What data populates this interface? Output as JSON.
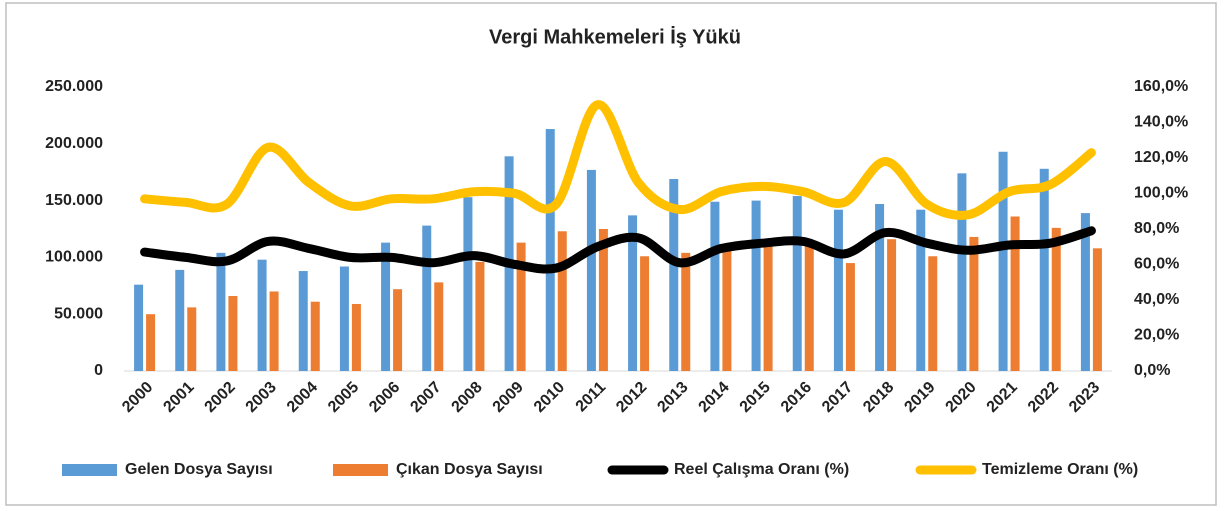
{
  "chart_data": {
    "type": "bar_line",
    "title": "Vergi Mahkemeleri İş Yükü",
    "categories": [
      "2000",
      "2001",
      "2002",
      "2003",
      "2004",
      "2005",
      "2006",
      "2007",
      "2008",
      "2009",
      "2010",
      "2011",
      "2012",
      "2013",
      "2014",
      "2015",
      "2016",
      "2017",
      "2018",
      "2019",
      "2020",
      "2021",
      "2022",
      "2023"
    ],
    "series": [
      {
        "name": "Gelen Dosya Sayısı",
        "color": "#5b9bd5",
        "kind": "bar",
        "values": [
          76000,
          89000,
          104000,
          98000,
          88000,
          92000,
          113000,
          128000,
          153000,
          189000,
          213000,
          177000,
          137000,
          169000,
          149000,
          150000,
          154000,
          142000,
          147000,
          142000,
          174000,
          193000,
          178000,
          139000
        ]
      },
      {
        "name": "Çıkan Dosya Sayısı",
        "color": "#ed7d31",
        "kind": "bar",
        "values": [
          50000,
          56000,
          66000,
          70000,
          61000,
          59000,
          72000,
          78000,
          96000,
          113000,
          123000,
          125000,
          101000,
          104000,
          106000,
          110000,
          111000,
          95000,
          116000,
          101000,
          118000,
          136000,
          126000,
          108000
        ]
      },
      {
        "name": "Reel Çalışma Oranı (%)",
        "color": "#000000",
        "kind": "line",
        "axis": "y2",
        "values": [
          67,
          64,
          62,
          73,
          69,
          64,
          64,
          61,
          65,
          60,
          58,
          70,
          75,
          61,
          69,
          72,
          73,
          66,
          78,
          72,
          68,
          71,
          72,
          79
        ]
      },
      {
        "name": "Temizleme Oranı (%)",
        "color": "#ffc000",
        "kind": "line",
        "axis": "y2",
        "values": [
          97,
          95,
          94,
          126,
          106,
          93,
          97,
          97,
          101,
          100,
          94,
          150,
          106,
          91,
          101,
          104,
          101,
          95,
          118,
          94,
          88,
          101,
          105,
          123
        ]
      }
    ],
    "ylim": [
      0,
      250000
    ],
    "yticks": [
      0,
      {
        "value": 50000,
        "label": "50.000"
      },
      {
        "value": 100000,
        "label": "100.000"
      },
      {
        "value": 150000,
        "label": "150.000"
      },
      {
        "value": 200000,
        "label": "200.000"
      },
      {
        "value": 250000,
        "label": "250.000"
      }
    ],
    "y2lim": [
      0,
      160
    ],
    "y2ticks": [
      {
        "value": 0,
        "label": "0,0%"
      },
      {
        "value": 20,
        "label": "20,0%"
      },
      {
        "value": 40,
        "label": "40,0%"
      },
      {
        "value": 60,
        "label": "60,0%"
      },
      {
        "value": 80,
        "label": "80,0%"
      },
      {
        "value": 100,
        "label": "100,0%"
      },
      {
        "value": 120,
        "label": "120,0%"
      },
      {
        "value": 140,
        "label": "140,0%"
      },
      {
        "value": 160,
        "label": "160,0%"
      }
    ],
    "grid": false,
    "legend": "bottom"
  }
}
